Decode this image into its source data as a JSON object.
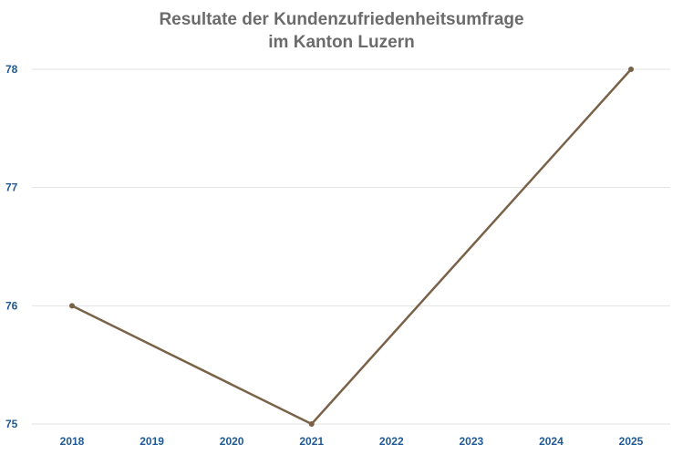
{
  "chart_data": {
    "type": "line",
    "title_lines": [
      "Resultate der Kundenzufriedenheitsumfrage",
      "im Kanton Luzern"
    ],
    "xlabel": "",
    "ylabel": "",
    "x_ticks": [
      "2018",
      "2019",
      "2020",
      "2021",
      "2022",
      "2023",
      "2024",
      "2025"
    ],
    "y_ticks": [
      "75",
      "76",
      "77",
      "78"
    ],
    "ylim": [
      75,
      78
    ],
    "grid": true,
    "series": [
      {
        "x": [
          "2018",
          "2021",
          "2025"
        ],
        "values": [
          76,
          75,
          78
        ]
      }
    ],
    "colors": {
      "line": "#7a6248",
      "tick_text": "#1f5a96",
      "title": "#6b6b6b",
      "grid": "#e2e2e2"
    }
  }
}
